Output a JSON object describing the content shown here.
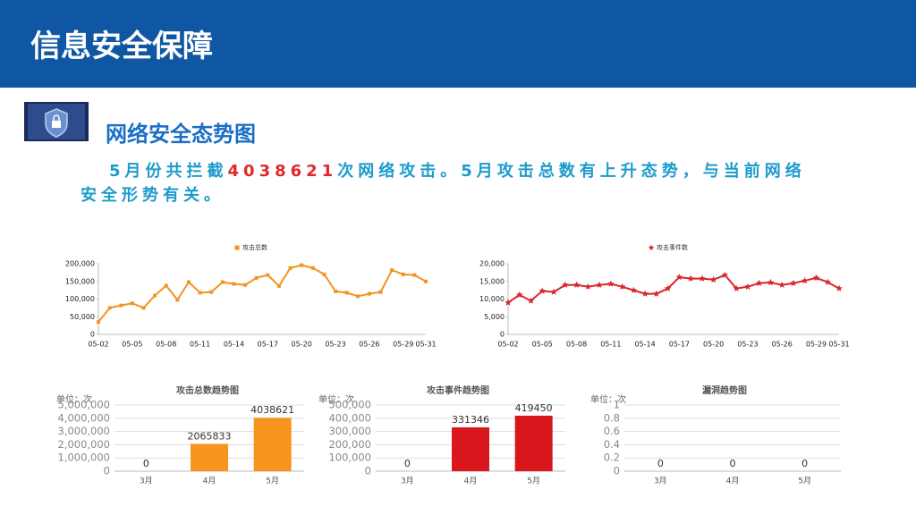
{
  "header": {
    "title": "信息安全保障"
  },
  "section": {
    "heading": "网络安全态势图",
    "paragraph": [
      "5月份共拦截",
      "4038621",
      "次网络攻击。5月攻击总数有上升态势，与当前网络安全形势有关。"
    ]
  },
  "chart_data": [
    {
      "type": "line",
      "categories": [
        "05-02",
        null,
        null,
        "05-05",
        null,
        null,
        "05-08",
        null,
        null,
        "05-11",
        null,
        null,
        "05-14",
        null,
        null,
        "05-17",
        null,
        null,
        "05-20",
        null,
        null,
        "05-23",
        null,
        null,
        "05-26",
        null,
        null,
        "05-29",
        null,
        "05-31"
      ],
      "series": [
        {
          "name": "攻击总数",
          "color": "#f39322",
          "marker": "square",
          "values": [
            35000,
            75000,
            82000,
            88000,
            75000,
            110000,
            138000,
            98000,
            148000,
            118000,
            120000,
            148000,
            143000,
            140000,
            160000,
            168000,
            137000,
            188000,
            196000,
            188000,
            170000,
            122000,
            118000,
            108000,
            115000,
            120000,
            182000,
            170000,
            168000,
            150000
          ]
        }
      ],
      "ylim": [
        0,
        200000
      ],
      "yticks": [
        0,
        {
          "value": 50000,
          "label": "50,000"
        },
        {
          "value": 100000,
          "label": "100,000"
        },
        {
          "value": 150000,
          "label": "150,000"
        },
        {
          "value": 200000,
          "label": "200,000"
        }
      ],
      "grid": false
    },
    {
      "type": "line",
      "categories": [
        "05-02",
        null,
        null,
        "05-05",
        null,
        null,
        "05-08",
        null,
        null,
        "05-11",
        null,
        null,
        "05-14",
        null,
        null,
        "05-17",
        null,
        null,
        "05-20",
        null,
        null,
        "05-23",
        null,
        null,
        "05-26",
        null,
        null,
        "05-29",
        null,
        "05-31"
      ],
      "series": [
        {
          "name": "攻击事件数",
          "color": "#d9252b",
          "marker": "star",
          "values": [
            9000,
            11200,
            9500,
            12300,
            12000,
            14000,
            14000,
            13500,
            14000,
            14300,
            13500,
            12500,
            11500,
            11500,
            13000,
            16200,
            15800,
            15800,
            15500,
            16800,
            13000,
            13500,
            14500,
            14700,
            14000,
            14500,
            15200,
            16000,
            14800,
            13000
          ]
        }
      ],
      "ylim": [
        0,
        20000
      ],
      "yticks": [
        0,
        {
          "value": 5000,
          "label": "5,000"
        },
        {
          "value": 10000,
          "label": "10,000"
        },
        {
          "value": 15000,
          "label": "15,000"
        },
        {
          "value": 20000,
          "label": "20,000"
        }
      ],
      "grid": false
    },
    {
      "type": "bar",
      "title": "攻击总数趋势图",
      "unit": "单位：次",
      "categories": [
        "3月",
        "4月",
        "5月"
      ],
      "values": [
        0,
        2065833,
        4038621
      ],
      "color": "#f7941d",
      "ylim": [
        0,
        5000000
      ],
      "yticks": [
        0,
        {
          "value": 1000000,
          "label": "1,000,000"
        },
        {
          "value": 2000000,
          "label": "2,000,000"
        },
        {
          "value": 3000000,
          "label": "3,000,000"
        },
        {
          "value": 4000000,
          "label": "4,000,000"
        },
        {
          "value": 5000000,
          "label": "5,000,000"
        }
      ],
      "grid": true
    },
    {
      "type": "bar",
      "title": "攻击事件趋势图",
      "unit": "单位：次",
      "categories": [
        "3月",
        "4月",
        "5月"
      ],
      "values": [
        0,
        331346,
        419450
      ],
      "color": "#d9161c",
      "ylim": [
        0,
        500000
      ],
      "yticks": [
        0,
        {
          "value": 100000,
          "label": "100,000"
        },
        {
          "value": 200000,
          "label": "200,000"
        },
        {
          "value": 300000,
          "label": "300,000"
        },
        {
          "value": 400000,
          "label": "400,000"
        },
        {
          "value": 500000,
          "label": "500,000"
        }
      ],
      "grid": true
    },
    {
      "type": "bar",
      "title": "漏洞趋势图",
      "unit": "单位：次",
      "categories": [
        "3月",
        "4月",
        "5月"
      ],
      "values": [
        0,
        0,
        0
      ],
      "color": "#4472c4",
      "ylim": [
        0,
        1
      ],
      "yticks": [
        0,
        0.2,
        0.4,
        0.6,
        0.8,
        1
      ],
      "grid": true
    }
  ]
}
